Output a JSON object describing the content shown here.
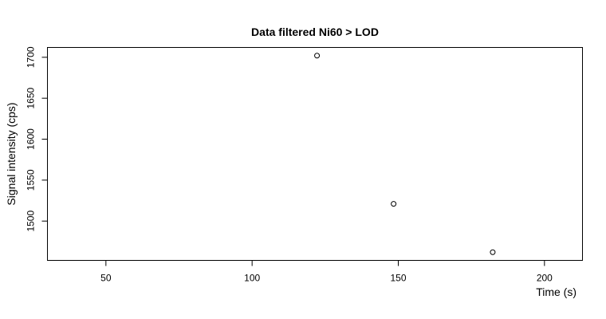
{
  "chart_data": {
    "type": "scatter",
    "title": "Data filtered Ni60 > LOD",
    "xlabel": "Time (s)",
    "ylabel": "Signal intensity (cps)",
    "xlim": [
      30,
      213
    ],
    "ylim": [
      1452,
      1712
    ],
    "x_ticks": [
      50,
      100,
      150,
      200
    ],
    "y_ticks": [
      1500,
      1550,
      1600,
      1650,
      1700
    ],
    "grid": false,
    "points": [
      {
        "x": 122.2,
        "y": 1702
      },
      {
        "x": 148.4,
        "y": 1521
      },
      {
        "x": 182.3,
        "y": 1462
      }
    ]
  }
}
